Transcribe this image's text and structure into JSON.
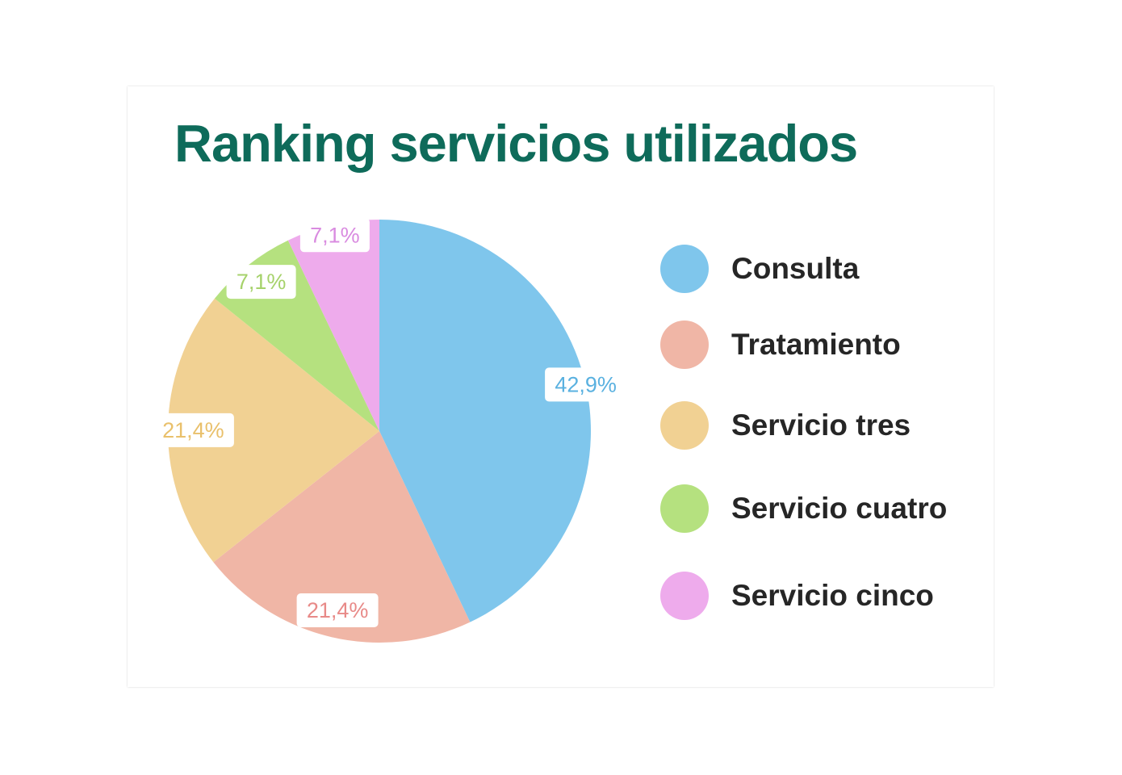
{
  "chart_data": {
    "type": "pie",
    "title": "Ranking servicios utilizados",
    "categories": [
      "Consulta",
      "Tratamiento",
      "Servicio tres",
      "Servicio cuatro",
      "Servicio cinco"
    ],
    "values": [
      42.9,
      21.4,
      21.4,
      7.1,
      7.1
    ],
    "data_labels": [
      "42,9%",
      "21,4%",
      "21,4%",
      "7,1%",
      "7,1%"
    ],
    "colors": [
      "#7fc6ec",
      "#f0b6a6",
      "#f1d193",
      "#b5e17f",
      "#eeabec"
    ],
    "label_colors": [
      "#5ab1e0",
      "#e88a88",
      "#e9c06b",
      "#a6d26b",
      "#d98be0"
    ],
    "legend_position": "right"
  }
}
